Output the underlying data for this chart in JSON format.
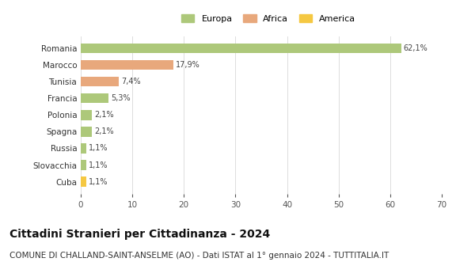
{
  "categories": [
    "Romania",
    "Marocco",
    "Tunisia",
    "Francia",
    "Polonia",
    "Spagna",
    "Russia",
    "Slovacchia",
    "Cuba"
  ],
  "values": [
    62.1,
    17.9,
    7.4,
    5.3,
    2.1,
    2.1,
    1.1,
    1.1,
    1.1
  ],
  "labels": [
    "62,1%",
    "17,9%",
    "7,4%",
    "5,3%",
    "2,1%",
    "2,1%",
    "1,1%",
    "1,1%",
    "1,1%"
  ],
  "colors": [
    "#adc87a",
    "#e8a87c",
    "#e8a87c",
    "#adc87a",
    "#adc87a",
    "#adc87a",
    "#adc87a",
    "#adc87a",
    "#f5c842"
  ],
  "continent": [
    "Europa",
    "Africa",
    "Africa",
    "Europa",
    "Europa",
    "Europa",
    "Europa",
    "Europa",
    "America"
  ],
  "legend_labels": [
    "Europa",
    "Africa",
    "America"
  ],
  "legend_colors": [
    "#adc87a",
    "#e8a87c",
    "#f5c842"
  ],
  "xlim": [
    0,
    70
  ],
  "xticks": [
    0,
    10,
    20,
    30,
    40,
    50,
    60,
    70
  ],
  "title": "Cittadini Stranieri per Cittadinanza - 2024",
  "subtitle": "COMUNE DI CHALLAND-SAINT-ANSELME (AO) - Dati ISTAT al 1° gennaio 2024 - TUTTITALIA.IT",
  "title_fontsize": 10,
  "subtitle_fontsize": 7.5,
  "background_color": "#ffffff",
  "grid_color": "#dddddd",
  "bar_height": 0.6
}
